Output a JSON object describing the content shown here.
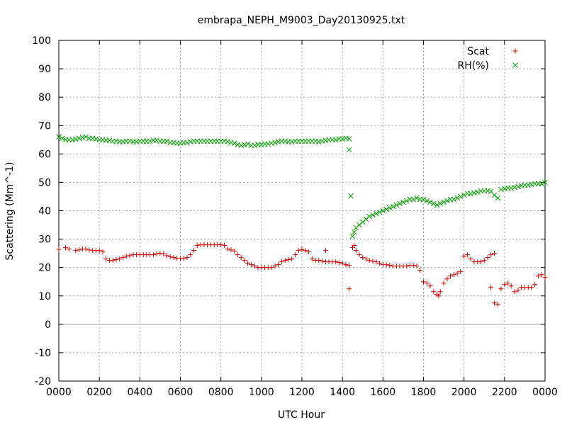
{
  "chart_data": {
    "type": "scatter",
    "title": "embrapa_NEPH_M9003_Day20130925.txt",
    "xlabel": "UTC Hour",
    "ylabel": "Scattering (Mm^-1)",
    "xlim": [
      0,
      24
    ],
    "ylim": [
      -20,
      100
    ],
    "x_ticks": [
      0,
      2,
      4,
      6,
      8,
      10,
      12,
      14,
      16,
      18,
      20,
      22,
      24
    ],
    "x_tick_labels": [
      "0000",
      "0200",
      "0400",
      "0600",
      "0800",
      "1000",
      "1200",
      "1400",
      "1600",
      "1800",
      "2000",
      "2200",
      "0000"
    ],
    "y_ticks": [
      -20,
      -10,
      0,
      10,
      20,
      30,
      40,
      50,
      60,
      70,
      80,
      90,
      100
    ],
    "y_tick_labels": [
      "-20",
      "-10",
      "0",
      "10",
      "20",
      "30",
      "40",
      "50",
      "60",
      "70",
      "80",
      "90",
      "100"
    ],
    "grid": true,
    "zero_line": true,
    "legend_position": "top-right",
    "series": [
      {
        "name": "Scat",
        "marker": "plus",
        "color": "#cc0000",
        "points": [
          [
            0.0,
            26.4
          ],
          [
            0.33,
            27.0
          ],
          [
            0.5,
            26.5
          ],
          [
            0.83,
            26.0
          ],
          [
            1.0,
            26.2
          ],
          [
            1.17,
            26.5
          ],
          [
            1.33,
            26.5
          ],
          [
            1.5,
            26.2
          ],
          [
            1.67,
            26.0
          ],
          [
            1.83,
            26.0
          ],
          [
            2.0,
            26.0
          ],
          [
            2.17,
            25.5
          ],
          [
            2.33,
            23.0
          ],
          [
            2.5,
            22.5
          ],
          [
            2.67,
            22.5
          ],
          [
            2.83,
            22.8
          ],
          [
            3.0,
            23.0
          ],
          [
            3.17,
            23.5
          ],
          [
            3.33,
            24.0
          ],
          [
            3.5,
            24.2
          ],
          [
            3.67,
            24.5
          ],
          [
            3.83,
            24.5
          ],
          [
            4.0,
            24.5
          ],
          [
            4.17,
            24.5
          ],
          [
            4.33,
            24.5
          ],
          [
            4.5,
            24.5
          ],
          [
            4.67,
            24.5
          ],
          [
            4.83,
            24.8
          ],
          [
            5.0,
            25.0
          ],
          [
            5.17,
            24.8
          ],
          [
            5.33,
            24.2
          ],
          [
            5.5,
            23.8
          ],
          [
            5.67,
            23.5
          ],
          [
            5.83,
            23.2
          ],
          [
            6.0,
            23.2
          ],
          [
            6.17,
            23.2
          ],
          [
            6.33,
            23.5
          ],
          [
            6.5,
            24.5
          ],
          [
            6.67,
            26.0
          ],
          [
            6.83,
            27.8
          ],
          [
            7.0,
            28.0
          ],
          [
            7.17,
            28.0
          ],
          [
            7.33,
            28.0
          ],
          [
            7.5,
            28.0
          ],
          [
            7.67,
            28.0
          ],
          [
            7.83,
            28.0
          ],
          [
            8.0,
            28.0
          ],
          [
            8.17,
            27.8
          ],
          [
            8.33,
            26.5
          ],
          [
            8.5,
            26.2
          ],
          [
            8.67,
            25.8
          ],
          [
            8.83,
            24.5
          ],
          [
            9.0,
            23.5
          ],
          [
            9.17,
            22.5
          ],
          [
            9.33,
            21.5
          ],
          [
            9.5,
            21.0
          ],
          [
            9.67,
            20.5
          ],
          [
            9.83,
            20.0
          ],
          [
            10.0,
            20.0
          ],
          [
            10.17,
            20.0
          ],
          [
            10.33,
            20.0
          ],
          [
            10.5,
            20.0
          ],
          [
            10.67,
            20.5
          ],
          [
            10.83,
            21.0
          ],
          [
            11.0,
            22.0
          ],
          [
            11.17,
            22.5
          ],
          [
            11.33,
            22.8
          ],
          [
            11.5,
            23.0
          ],
          [
            11.67,
            24.5
          ],
          [
            11.83,
            26.0
          ],
          [
            12.0,
            26.3
          ],
          [
            12.17,
            26.0
          ],
          [
            12.33,
            25.5
          ],
          [
            12.5,
            23.0
          ],
          [
            12.67,
            22.5
          ],
          [
            12.83,
            22.5
          ],
          [
            13.0,
            22.3
          ],
          [
            13.17,
            26.0
          ],
          [
            13.17,
            22.0
          ],
          [
            13.33,
            22.0
          ],
          [
            13.5,
            22.0
          ],
          [
            13.67,
            22.0
          ],
          [
            13.83,
            21.8
          ],
          [
            14.0,
            21.5
          ],
          [
            14.17,
            21.0
          ],
          [
            14.33,
            20.8
          ],
          [
            14.33,
            12.5
          ],
          [
            14.5,
            27.0
          ],
          [
            14.58,
            27.8
          ],
          [
            14.67,
            26.0
          ],
          [
            14.83,
            24.5
          ],
          [
            15.0,
            23.5
          ],
          [
            15.17,
            23.0
          ],
          [
            15.33,
            22.5
          ],
          [
            15.5,
            22.2
          ],
          [
            15.67,
            22.0
          ],
          [
            15.83,
            21.5
          ],
          [
            16.0,
            21.0
          ],
          [
            16.17,
            21.0
          ],
          [
            16.33,
            20.8
          ],
          [
            16.5,
            20.5
          ],
          [
            16.67,
            20.5
          ],
          [
            16.83,
            20.5
          ],
          [
            17.0,
            20.5
          ],
          [
            17.17,
            20.5
          ],
          [
            17.33,
            20.8
          ],
          [
            17.5,
            20.8
          ],
          [
            17.67,
            20.5
          ],
          [
            17.83,
            19.0
          ],
          [
            18.0,
            15.0
          ],
          [
            18.17,
            14.5
          ],
          [
            18.33,
            13.5
          ],
          [
            18.5,
            11.5
          ],
          [
            18.67,
            10.5
          ],
          [
            18.75,
            10.0
          ],
          [
            18.83,
            11.5
          ],
          [
            19.0,
            14.5
          ],
          [
            19.17,
            16.0
          ],
          [
            19.33,
            17.0
          ],
          [
            19.5,
            17.5
          ],
          [
            19.67,
            18.0
          ],
          [
            19.83,
            18.5
          ],
          [
            20.0,
            24.0
          ],
          [
            20.17,
            24.5
          ],
          [
            20.33,
            23.0
          ],
          [
            20.5,
            22.0
          ],
          [
            20.67,
            22.0
          ],
          [
            20.83,
            22.0
          ],
          [
            21.0,
            22.5
          ],
          [
            21.17,
            23.5
          ],
          [
            21.33,
            24.5
          ],
          [
            21.5,
            25.0
          ],
          [
            21.33,
            13.0
          ],
          [
            21.5,
            7.5
          ],
          [
            21.67,
            7.0
          ],
          [
            21.83,
            12.5
          ],
          [
            22.0,
            14.0
          ],
          [
            22.17,
            14.5
          ],
          [
            22.33,
            13.5
          ],
          [
            22.5,
            11.5
          ],
          [
            22.67,
            12.0
          ],
          [
            22.83,
            13.0
          ],
          [
            23.0,
            13.0
          ],
          [
            23.17,
            13.0
          ],
          [
            23.33,
            13.0
          ],
          [
            23.5,
            14.0
          ],
          [
            23.67,
            17.0
          ],
          [
            23.83,
            17.5
          ],
          [
            24.0,
            16.5
          ]
        ]
      },
      {
        "name": "RH(%)",
        "marker": "cross",
        "color": "#00a000",
        "points": [
          [
            0.0,
            66.0
          ],
          [
            0.17,
            65.5
          ],
          [
            0.33,
            65.0
          ],
          [
            0.5,
            65.0
          ],
          [
            0.67,
            65.0
          ],
          [
            0.83,
            65.2
          ],
          [
            1.0,
            65.5
          ],
          [
            1.17,
            65.8
          ],
          [
            1.33,
            66.0
          ],
          [
            1.5,
            65.5
          ],
          [
            1.67,
            65.5
          ],
          [
            1.83,
            65.3
          ],
          [
            2.0,
            65.0
          ],
          [
            2.17,
            65.0
          ],
          [
            2.33,
            64.8
          ],
          [
            2.5,
            64.8
          ],
          [
            2.67,
            64.5
          ],
          [
            2.83,
            64.5
          ],
          [
            3.0,
            64.3
          ],
          [
            3.17,
            64.3
          ],
          [
            3.33,
            64.5
          ],
          [
            3.5,
            64.5
          ],
          [
            3.67,
            64.3
          ],
          [
            3.83,
            64.3
          ],
          [
            4.0,
            64.5
          ],
          [
            4.17,
            64.5
          ],
          [
            4.33,
            64.5
          ],
          [
            4.5,
            64.5
          ],
          [
            4.67,
            64.8
          ],
          [
            4.83,
            64.8
          ],
          [
            5.0,
            64.5
          ],
          [
            5.17,
            64.5
          ],
          [
            5.33,
            64.5
          ],
          [
            5.5,
            64.0
          ],
          [
            5.67,
            64.0
          ],
          [
            5.83,
            63.8
          ],
          [
            6.0,
            63.8
          ],
          [
            6.17,
            64.0
          ],
          [
            6.33,
            64.0
          ],
          [
            6.5,
            64.3
          ],
          [
            6.67,
            64.5
          ],
          [
            6.83,
            64.5
          ],
          [
            7.0,
            64.5
          ],
          [
            7.17,
            64.5
          ],
          [
            7.33,
            64.5
          ],
          [
            7.5,
            64.5
          ],
          [
            7.67,
            64.5
          ],
          [
            7.83,
            64.5
          ],
          [
            8.0,
            64.5
          ],
          [
            8.17,
            64.5
          ],
          [
            8.33,
            64.3
          ],
          [
            8.5,
            64.0
          ],
          [
            8.67,
            63.8
          ],
          [
            8.83,
            63.3
          ],
          [
            9.0,
            63.0
          ],
          [
            9.17,
            63.3
          ],
          [
            9.33,
            63.5
          ],
          [
            9.5,
            63.0
          ],
          [
            9.67,
            63.0
          ],
          [
            9.83,
            63.3
          ],
          [
            10.0,
            63.3
          ],
          [
            10.17,
            63.5
          ],
          [
            10.33,
            63.5
          ],
          [
            10.5,
            63.8
          ],
          [
            10.67,
            64.0
          ],
          [
            10.83,
            64.3
          ],
          [
            11.0,
            64.5
          ],
          [
            11.17,
            64.5
          ],
          [
            11.33,
            64.3
          ],
          [
            11.5,
            64.3
          ],
          [
            11.67,
            64.5
          ],
          [
            11.83,
            64.5
          ],
          [
            12.0,
            64.5
          ],
          [
            12.17,
            64.5
          ],
          [
            12.33,
            64.5
          ],
          [
            12.5,
            64.5
          ],
          [
            12.67,
            64.5
          ],
          [
            12.83,
            64.3
          ],
          [
            13.0,
            64.5
          ],
          [
            13.17,
            64.8
          ],
          [
            13.33,
            65.0
          ],
          [
            13.5,
            65.0
          ],
          [
            13.67,
            65.0
          ],
          [
            13.83,
            65.3
          ],
          [
            14.0,
            65.3
          ],
          [
            14.17,
            65.5
          ],
          [
            14.33,
            65.3
          ],
          [
            14.33,
            61.5
          ],
          [
            14.42,
            45.2
          ],
          [
            14.5,
            31.0
          ],
          [
            14.58,
            32.5
          ],
          [
            14.67,
            34.0
          ],
          [
            14.83,
            35.0
          ],
          [
            15.0,
            36.0
          ],
          [
            15.17,
            37.0
          ],
          [
            15.33,
            38.0
          ],
          [
            15.5,
            38.5
          ],
          [
            15.67,
            39.0
          ],
          [
            15.83,
            39.5
          ],
          [
            16.0,
            40.0
          ],
          [
            16.17,
            40.5
          ],
          [
            16.33,
            41.0
          ],
          [
            16.5,
            41.5
          ],
          [
            16.67,
            42.0
          ],
          [
            16.83,
            42.5
          ],
          [
            17.0,
            43.0
          ],
          [
            17.17,
            43.5
          ],
          [
            17.33,
            44.0
          ],
          [
            17.5,
            44.0
          ],
          [
            17.67,
            44.5
          ],
          [
            17.83,
            44.0
          ],
          [
            18.0,
            44.0
          ],
          [
            18.17,
            43.5
          ],
          [
            18.33,
            43.0
          ],
          [
            18.5,
            42.5
          ],
          [
            18.67,
            42.0
          ],
          [
            18.83,
            42.5
          ],
          [
            19.0,
            43.0
          ],
          [
            19.17,
            43.5
          ],
          [
            19.33,
            44.0
          ],
          [
            19.5,
            44.0
          ],
          [
            19.67,
            44.5
          ],
          [
            19.83,
            45.0
          ],
          [
            20.0,
            45.5
          ],
          [
            20.17,
            46.0
          ],
          [
            20.33,
            46.0
          ],
          [
            20.5,
            46.3
          ],
          [
            20.67,
            46.5
          ],
          [
            20.83,
            47.0
          ],
          [
            21.0,
            47.0
          ],
          [
            21.17,
            47.0
          ],
          [
            21.33,
            46.8
          ],
          [
            21.5,
            45.5
          ],
          [
            21.67,
            44.5
          ],
          [
            21.83,
            47.5
          ],
          [
            22.0,
            47.8
          ],
          [
            22.17,
            48.0
          ],
          [
            22.33,
            48.0
          ],
          [
            22.5,
            48.2
          ],
          [
            22.67,
            48.5
          ],
          [
            22.83,
            48.8
          ],
          [
            23.0,
            49.0
          ],
          [
            23.17,
            49.0
          ],
          [
            23.33,
            49.2
          ],
          [
            23.5,
            49.5
          ],
          [
            23.67,
            49.5
          ],
          [
            23.83,
            49.5
          ],
          [
            24.0,
            50.0
          ]
        ]
      }
    ]
  }
}
